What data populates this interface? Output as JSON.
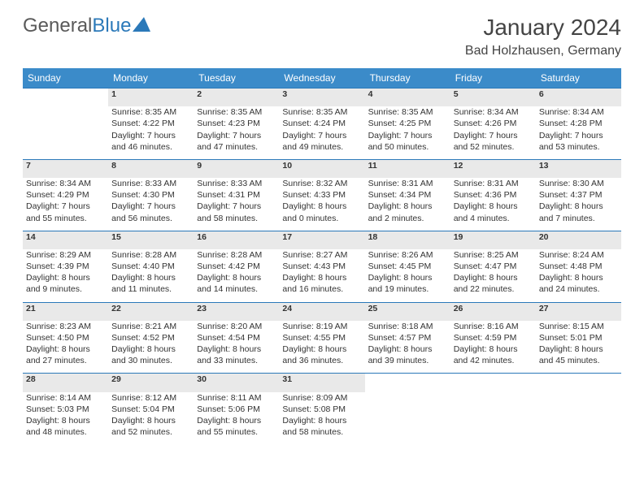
{
  "logo": {
    "text1": "General",
    "text2": "Blue"
  },
  "title": "January 2024",
  "location": "Bad Holzhausen, Germany",
  "colors": {
    "header_bg": "#3b8bc9",
    "header_text": "#ffffff",
    "daynum_bg": "#e9e9e9",
    "border": "#2b79b9",
    "logo_blue": "#2b79b9",
    "text": "#333333"
  },
  "weekdays": [
    "Sunday",
    "Monday",
    "Tuesday",
    "Wednesday",
    "Thursday",
    "Friday",
    "Saturday"
  ],
  "weeks": [
    {
      "nums": [
        "",
        "1",
        "2",
        "3",
        "4",
        "5",
        "6"
      ],
      "cells": [
        null,
        {
          "sun": "Sunrise: 8:35 AM",
          "set": "Sunset: 4:22 PM",
          "d1": "Daylight: 7 hours",
          "d2": "and 46 minutes."
        },
        {
          "sun": "Sunrise: 8:35 AM",
          "set": "Sunset: 4:23 PM",
          "d1": "Daylight: 7 hours",
          "d2": "and 47 minutes."
        },
        {
          "sun": "Sunrise: 8:35 AM",
          "set": "Sunset: 4:24 PM",
          "d1": "Daylight: 7 hours",
          "d2": "and 49 minutes."
        },
        {
          "sun": "Sunrise: 8:35 AM",
          "set": "Sunset: 4:25 PM",
          "d1": "Daylight: 7 hours",
          "d2": "and 50 minutes."
        },
        {
          "sun": "Sunrise: 8:34 AM",
          "set": "Sunset: 4:26 PM",
          "d1": "Daylight: 7 hours",
          "d2": "and 52 minutes."
        },
        {
          "sun": "Sunrise: 8:34 AM",
          "set": "Sunset: 4:28 PM",
          "d1": "Daylight: 7 hours",
          "d2": "and 53 minutes."
        }
      ]
    },
    {
      "nums": [
        "7",
        "8",
        "9",
        "10",
        "11",
        "12",
        "13"
      ],
      "cells": [
        {
          "sun": "Sunrise: 8:34 AM",
          "set": "Sunset: 4:29 PM",
          "d1": "Daylight: 7 hours",
          "d2": "and 55 minutes."
        },
        {
          "sun": "Sunrise: 8:33 AM",
          "set": "Sunset: 4:30 PM",
          "d1": "Daylight: 7 hours",
          "d2": "and 56 minutes."
        },
        {
          "sun": "Sunrise: 8:33 AM",
          "set": "Sunset: 4:31 PM",
          "d1": "Daylight: 7 hours",
          "d2": "and 58 minutes."
        },
        {
          "sun": "Sunrise: 8:32 AM",
          "set": "Sunset: 4:33 PM",
          "d1": "Daylight: 8 hours",
          "d2": "and 0 minutes."
        },
        {
          "sun": "Sunrise: 8:31 AM",
          "set": "Sunset: 4:34 PM",
          "d1": "Daylight: 8 hours",
          "d2": "and 2 minutes."
        },
        {
          "sun": "Sunrise: 8:31 AM",
          "set": "Sunset: 4:36 PM",
          "d1": "Daylight: 8 hours",
          "d2": "and 4 minutes."
        },
        {
          "sun": "Sunrise: 8:30 AM",
          "set": "Sunset: 4:37 PM",
          "d1": "Daylight: 8 hours",
          "d2": "and 7 minutes."
        }
      ]
    },
    {
      "nums": [
        "14",
        "15",
        "16",
        "17",
        "18",
        "19",
        "20"
      ],
      "cells": [
        {
          "sun": "Sunrise: 8:29 AM",
          "set": "Sunset: 4:39 PM",
          "d1": "Daylight: 8 hours",
          "d2": "and 9 minutes."
        },
        {
          "sun": "Sunrise: 8:28 AM",
          "set": "Sunset: 4:40 PM",
          "d1": "Daylight: 8 hours",
          "d2": "and 11 minutes."
        },
        {
          "sun": "Sunrise: 8:28 AM",
          "set": "Sunset: 4:42 PM",
          "d1": "Daylight: 8 hours",
          "d2": "and 14 minutes."
        },
        {
          "sun": "Sunrise: 8:27 AM",
          "set": "Sunset: 4:43 PM",
          "d1": "Daylight: 8 hours",
          "d2": "and 16 minutes."
        },
        {
          "sun": "Sunrise: 8:26 AM",
          "set": "Sunset: 4:45 PM",
          "d1": "Daylight: 8 hours",
          "d2": "and 19 minutes."
        },
        {
          "sun": "Sunrise: 8:25 AM",
          "set": "Sunset: 4:47 PM",
          "d1": "Daylight: 8 hours",
          "d2": "and 22 minutes."
        },
        {
          "sun": "Sunrise: 8:24 AM",
          "set": "Sunset: 4:48 PM",
          "d1": "Daylight: 8 hours",
          "d2": "and 24 minutes."
        }
      ]
    },
    {
      "nums": [
        "21",
        "22",
        "23",
        "24",
        "25",
        "26",
        "27"
      ],
      "cells": [
        {
          "sun": "Sunrise: 8:23 AM",
          "set": "Sunset: 4:50 PM",
          "d1": "Daylight: 8 hours",
          "d2": "and 27 minutes."
        },
        {
          "sun": "Sunrise: 8:21 AM",
          "set": "Sunset: 4:52 PM",
          "d1": "Daylight: 8 hours",
          "d2": "and 30 minutes."
        },
        {
          "sun": "Sunrise: 8:20 AM",
          "set": "Sunset: 4:54 PM",
          "d1": "Daylight: 8 hours",
          "d2": "and 33 minutes."
        },
        {
          "sun": "Sunrise: 8:19 AM",
          "set": "Sunset: 4:55 PM",
          "d1": "Daylight: 8 hours",
          "d2": "and 36 minutes."
        },
        {
          "sun": "Sunrise: 8:18 AM",
          "set": "Sunset: 4:57 PM",
          "d1": "Daylight: 8 hours",
          "d2": "and 39 minutes."
        },
        {
          "sun": "Sunrise: 8:16 AM",
          "set": "Sunset: 4:59 PM",
          "d1": "Daylight: 8 hours",
          "d2": "and 42 minutes."
        },
        {
          "sun": "Sunrise: 8:15 AM",
          "set": "Sunset: 5:01 PM",
          "d1": "Daylight: 8 hours",
          "d2": "and 45 minutes."
        }
      ]
    },
    {
      "nums": [
        "28",
        "29",
        "30",
        "31",
        "",
        "",
        ""
      ],
      "cells": [
        {
          "sun": "Sunrise: 8:14 AM",
          "set": "Sunset: 5:03 PM",
          "d1": "Daylight: 8 hours",
          "d2": "and 48 minutes."
        },
        {
          "sun": "Sunrise: 8:12 AM",
          "set": "Sunset: 5:04 PM",
          "d1": "Daylight: 8 hours",
          "d2": "and 52 minutes."
        },
        {
          "sun": "Sunrise: 8:11 AM",
          "set": "Sunset: 5:06 PM",
          "d1": "Daylight: 8 hours",
          "d2": "and 55 minutes."
        },
        {
          "sun": "Sunrise: 8:09 AM",
          "set": "Sunset: 5:08 PM",
          "d1": "Daylight: 8 hours",
          "d2": "and 58 minutes."
        },
        null,
        null,
        null
      ]
    }
  ]
}
